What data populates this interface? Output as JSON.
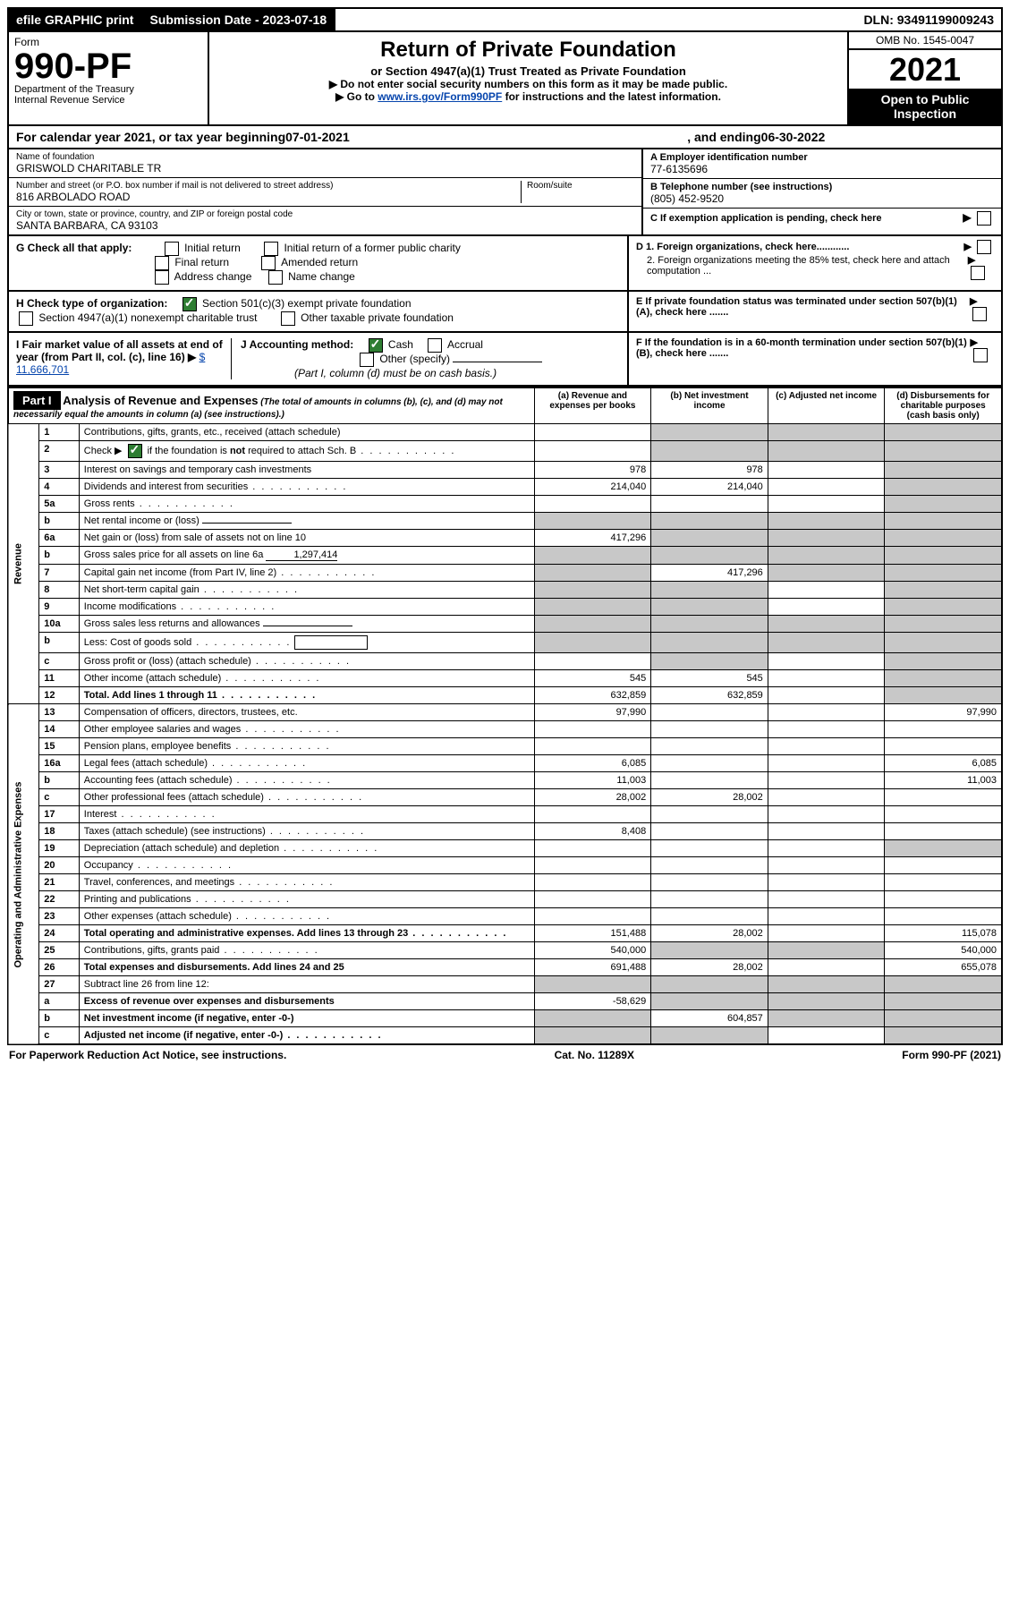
{
  "top": {
    "efile": "efile GRAPHIC print",
    "submission_label": "Submission Date - 2023-07-18",
    "dln": "DLN: 93491199009243"
  },
  "header": {
    "form_label": "Form",
    "form_number": "990-PF",
    "dept": "Department of the Treasury",
    "irs": "Internal Revenue Service",
    "title": "Return of Private Foundation",
    "subtitle": "or Section 4947(a)(1) Trust Treated as Private Foundation",
    "note1": "▶ Do not enter social security numbers on this form as it may be made public.",
    "note2_prefix": "▶ Go to ",
    "note2_link": "www.irs.gov/Form990PF",
    "note2_suffix": " for instructions and the latest information.",
    "omb": "OMB No. 1545-0047",
    "year": "2021",
    "open": "Open to Public Inspection"
  },
  "cal_year": {
    "prefix": "For calendar year 2021, or tax year beginning ",
    "begin": "07-01-2021",
    "mid": " , and ending ",
    "end": "06-30-2022"
  },
  "entity": {
    "name_label": "Name of foundation",
    "name": "GRISWOLD CHARITABLE TR",
    "addr_label": "Number and street (or P.O. box number if mail is not delivered to street address)",
    "room_label": "Room/suite",
    "addr": "816 ARBOLADO ROAD",
    "city_label": "City or town, state or province, country, and ZIP or foreign postal code",
    "city": "SANTA BARBARA, CA  93103",
    "ein_label": "A Employer identification number",
    "ein": "77-6135696",
    "phone_label": "B Telephone number (see instructions)",
    "phone": "(805) 452-9520",
    "c_label": "C If exemption application is pending, check here"
  },
  "checks": {
    "g_label": "G Check all that apply:",
    "g_opts": [
      "Initial return",
      "Initial return of a former public charity",
      "Final return",
      "Amended return",
      "Address change",
      "Name change"
    ],
    "h_label": "H Check type of organization:",
    "h_501": "Section 501(c)(3) exempt private foundation",
    "h_4947": "Section 4947(a)(1) nonexempt charitable trust",
    "h_other": "Other taxable private foundation",
    "i_label": "I Fair market value of all assets at end of year (from Part II, col. (c), line 16) ▶",
    "i_value": "$  11,666,701",
    "j_label": "J Accounting method:",
    "j_cash": "Cash",
    "j_accrual": "Accrual",
    "j_other": "Other (specify)",
    "j_note": "(Part I, column (d) must be on cash basis.)",
    "d1": "D 1. Foreign organizations, check here............",
    "d2": "2. Foreign organizations meeting the 85% test, check here and attach computation ...",
    "e": "E  If private foundation status was terminated under section 507(b)(1)(A), check here .......",
    "f": "F  If the foundation is in a 60-month termination under section 507(b)(1)(B), check here .......",
    "arrow": "▶"
  },
  "part1": {
    "label": "Part I",
    "title": "Analysis of Revenue and Expenses",
    "title_note": " (The total of amounts in columns (b), (c), and (d) may not necessarily equal the amounts in column (a) (see instructions).)",
    "col_a": "(a)   Revenue and expenses per books",
    "col_b": "(b)   Net investment income",
    "col_c": "(c)   Adjusted net income",
    "col_d": "(d)   Disbursements for charitable purposes (cash basis only)"
  },
  "side_labels": {
    "revenue": "Revenue",
    "expenses": "Operating and Administrative Expenses"
  },
  "rows": [
    {
      "n": "1",
      "d": "Contributions, gifts, grants, etc., received (attach schedule)",
      "a": "",
      "b": "",
      "c": "",
      "dd": "",
      "ag": false,
      "bg": true,
      "cg": true,
      "ddg": true
    },
    {
      "n": "2",
      "d": "Check ▶ ✔ if the foundation is not required to attach Sch. B",
      "a": "",
      "b": "",
      "c": "",
      "dd": "",
      "ag": false,
      "bg": true,
      "cg": true,
      "ddg": true,
      "checked": true,
      "dots": true
    },
    {
      "n": "3",
      "d": "Interest on savings and temporary cash investments",
      "a": "978",
      "b": "978",
      "c": "",
      "dd": "",
      "ddg": true
    },
    {
      "n": "4",
      "d": "Dividends and interest from securities",
      "a": "214,040",
      "b": "214,040",
      "c": "",
      "dd": "",
      "ddg": true,
      "dots": true
    },
    {
      "n": "5a",
      "d": "Gross rents",
      "a": "",
      "b": "",
      "c": "",
      "dd": "",
      "ddg": true,
      "dots": true
    },
    {
      "n": "b",
      "d": "Net rental income or (loss)",
      "a": "",
      "b": "",
      "c": "",
      "dd": "",
      "ag": true,
      "bg": true,
      "cg": true,
      "ddg": true,
      "inline_blank": true
    },
    {
      "n": "6a",
      "d": "Net gain or (loss) from sale of assets not on line 10",
      "a": "417,296",
      "b": "",
      "c": "",
      "dd": "",
      "bg": true,
      "cg": true,
      "ddg": true
    },
    {
      "n": "b",
      "d": "Gross sales price for all assets on line 6a",
      "a": "",
      "b": "",
      "c": "",
      "dd": "",
      "ag": true,
      "bg": true,
      "cg": true,
      "ddg": true,
      "inline_val": "1,297,414"
    },
    {
      "n": "7",
      "d": "Capital gain net income (from Part IV, line 2)",
      "a": "",
      "b": "417,296",
      "c": "",
      "dd": "",
      "ag": true,
      "cg": true,
      "ddg": true,
      "dots": true
    },
    {
      "n": "8",
      "d": "Net short-term capital gain",
      "a": "",
      "b": "",
      "c": "",
      "dd": "",
      "ag": true,
      "bg": true,
      "ddg": true,
      "dots": true
    },
    {
      "n": "9",
      "d": "Income modifications",
      "a": "",
      "b": "",
      "c": "",
      "dd": "",
      "ag": true,
      "bg": true,
      "ddg": true,
      "dots": true
    },
    {
      "n": "10a",
      "d": "Gross sales less returns and allowances",
      "a": "",
      "b": "",
      "c": "",
      "dd": "",
      "ag": true,
      "bg": true,
      "cg": true,
      "ddg": true,
      "inline_blank": true
    },
    {
      "n": "b",
      "d": "Less: Cost of goods sold",
      "a": "",
      "b": "",
      "c": "",
      "dd": "",
      "ag": true,
      "bg": true,
      "cg": true,
      "ddg": true,
      "inline_blank": true,
      "dots": true
    },
    {
      "n": "c",
      "d": "Gross profit or (loss) (attach schedule)",
      "a": "",
      "b": "",
      "c": "",
      "dd": "",
      "bg": true,
      "ddg": true,
      "dots": true
    },
    {
      "n": "11",
      "d": "Other income (attach schedule)",
      "a": "545",
      "b": "545",
      "c": "",
      "dd": "",
      "ddg": true,
      "dots": true
    },
    {
      "n": "12",
      "d": "Total. Add lines 1 through 11",
      "a": "632,859",
      "b": "632,859",
      "c": "",
      "dd": "",
      "ddg": true,
      "bold": true,
      "dots": true
    },
    {
      "n": "13",
      "d": "Compensation of officers, directors, trustees, etc.",
      "a": "97,990",
      "b": "",
      "c": "",
      "dd": "97,990"
    },
    {
      "n": "14",
      "d": "Other employee salaries and wages",
      "a": "",
      "b": "",
      "c": "",
      "dd": "",
      "dots": true
    },
    {
      "n": "15",
      "d": "Pension plans, employee benefits",
      "a": "",
      "b": "",
      "c": "",
      "dd": "",
      "dots": true
    },
    {
      "n": "16a",
      "d": "Legal fees (attach schedule)",
      "a": "6,085",
      "b": "",
      "c": "",
      "dd": "6,085",
      "dots": true
    },
    {
      "n": "b",
      "d": "Accounting fees (attach schedule)",
      "a": "11,003",
      "b": "",
      "c": "",
      "dd": "11,003",
      "dots": true
    },
    {
      "n": "c",
      "d": "Other professional fees (attach schedule)",
      "a": "28,002",
      "b": "28,002",
      "c": "",
      "dd": "",
      "dots": true
    },
    {
      "n": "17",
      "d": "Interest",
      "a": "",
      "b": "",
      "c": "",
      "dd": "",
      "dots": true
    },
    {
      "n": "18",
      "d": "Taxes (attach schedule) (see instructions)",
      "a": "8,408",
      "b": "",
      "c": "",
      "dd": "",
      "dots": true
    },
    {
      "n": "19",
      "d": "Depreciation (attach schedule) and depletion",
      "a": "",
      "b": "",
      "c": "",
      "dd": "",
      "ddg": true,
      "dots": true
    },
    {
      "n": "20",
      "d": "Occupancy",
      "a": "",
      "b": "",
      "c": "",
      "dd": "",
      "dots": true
    },
    {
      "n": "21",
      "d": "Travel, conferences, and meetings",
      "a": "",
      "b": "",
      "c": "",
      "dd": "",
      "dots": true
    },
    {
      "n": "22",
      "d": "Printing and publications",
      "a": "",
      "b": "",
      "c": "",
      "dd": "",
      "dots": true
    },
    {
      "n": "23",
      "d": "Other expenses (attach schedule)",
      "a": "",
      "b": "",
      "c": "",
      "dd": "",
      "dots": true
    },
    {
      "n": "24",
      "d": "Total operating and administrative expenses. Add lines 13 through 23",
      "a": "151,488",
      "b": "28,002",
      "c": "",
      "dd": "115,078",
      "bold": true,
      "dots": true
    },
    {
      "n": "25",
      "d": "Contributions, gifts, grants paid",
      "a": "540,000",
      "b": "",
      "c": "",
      "dd": "540,000",
      "bg": true,
      "cg": true,
      "dots": true
    },
    {
      "n": "26",
      "d": "Total expenses and disbursements. Add lines 24 and 25",
      "a": "691,488",
      "b": "28,002",
      "c": "",
      "dd": "655,078",
      "bold": true
    },
    {
      "n": "27",
      "d": "Subtract line 26 from line 12:",
      "a": "",
      "b": "",
      "c": "",
      "dd": "",
      "ag": true,
      "bg": true,
      "cg": true,
      "ddg": true
    },
    {
      "n": "a",
      "d": "Excess of revenue over expenses and disbursements",
      "a": "-58,629",
      "b": "",
      "c": "",
      "dd": "",
      "bg": true,
      "cg": true,
      "ddg": true,
      "bold": true
    },
    {
      "n": "b",
      "d": "Net investment income (if negative, enter -0-)",
      "a": "",
      "b": "604,857",
      "c": "",
      "dd": "",
      "ag": true,
      "cg": true,
      "ddg": true,
      "bold": true
    },
    {
      "n": "c",
      "d": "Adjusted net income (if negative, enter -0-)",
      "a": "",
      "b": "",
      "c": "",
      "dd": "",
      "ag": true,
      "bg": true,
      "ddg": true,
      "bold": true,
      "dots": true
    }
  ],
  "footer": {
    "left": "For Paperwork Reduction Act Notice, see instructions.",
    "mid": "Cat. No. 11289X",
    "right": "Form 990-PF (2021)"
  }
}
